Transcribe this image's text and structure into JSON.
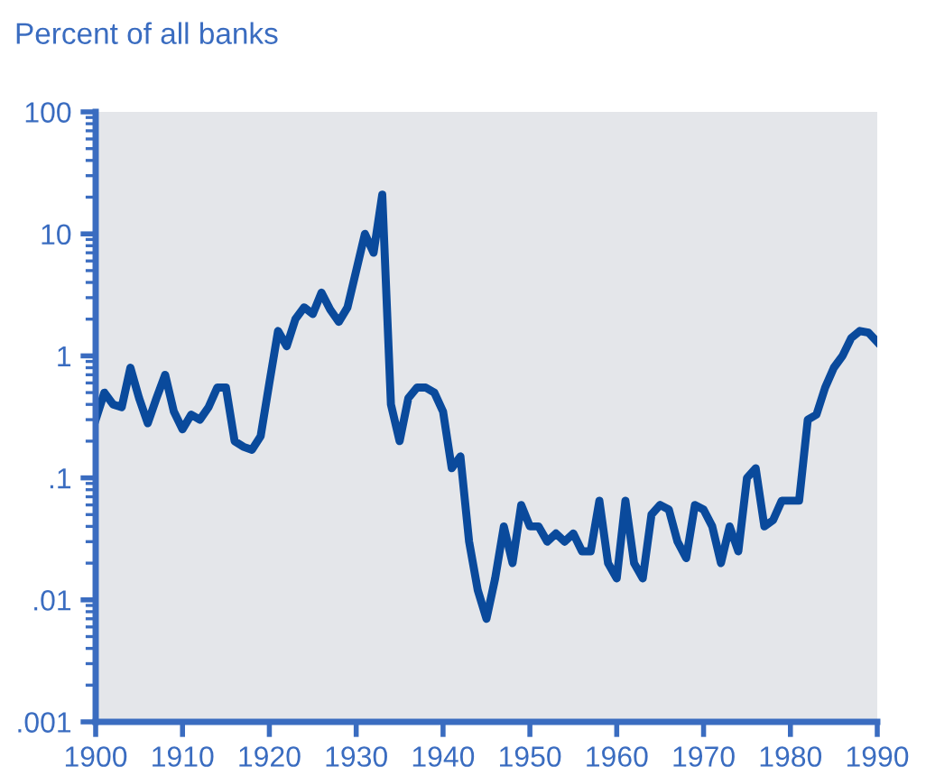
{
  "chart_data": {
    "type": "line",
    "ylabel": "Percent of all banks",
    "log": "y",
    "grid": false,
    "marker": "none",
    "line_style": "solid",
    "x": [
      1900,
      1901,
      1902,
      1903,
      1904,
      1905,
      1906,
      1907,
      1908,
      1909,
      1910,
      1911,
      1912,
      1913,
      1914,
      1915,
      1916,
      1917,
      1918,
      1919,
      1920,
      1921,
      1922,
      1923,
      1924,
      1925,
      1926,
      1927,
      1928,
      1929,
      1930,
      1931,
      1932,
      1933,
      1934,
      1935,
      1936,
      1937,
      1938,
      1939,
      1940,
      1941,
      1942,
      1943,
      1944,
      1945,
      1946,
      1947,
      1948,
      1949,
      1950,
      1951,
      1952,
      1953,
      1954,
      1955,
      1956,
      1957,
      1958,
      1959,
      1960,
      1961,
      1962,
      1963,
      1964,
      1965,
      1966,
      1967,
      1968,
      1969,
      1970,
      1971,
      1972,
      1973,
      1974,
      1975,
      1976,
      1977,
      1978,
      1979,
      1980,
      1981,
      1982,
      1983,
      1984,
      1985,
      1986,
      1987,
      1988,
      1989,
      1990
    ],
    "series": [
      {
        "color": "#0a4a9c",
        "values": [
          0.3,
          0.5,
          0.4,
          0.38,
          0.8,
          0.45,
          0.28,
          0.45,
          0.7,
          0.35,
          0.25,
          0.33,
          0.3,
          0.38,
          0.55,
          0.55,
          0.2,
          0.18,
          0.17,
          0.22,
          0.6,
          1.6,
          1.2,
          2.0,
          2.5,
          2.2,
          3.3,
          2.4,
          1.9,
          2.5,
          5,
          10,
          7,
          21,
          0.4,
          0.2,
          0.45,
          0.55,
          0.55,
          0.5,
          0.35,
          0.12,
          0.15,
          0.03,
          0.012,
          0.007,
          0.015,
          0.04,
          0.02,
          0.06,
          0.04,
          0.04,
          0.03,
          0.035,
          0.03,
          0.035,
          0.025,
          0.025,
          0.065,
          0.02,
          0.015,
          0.065,
          0.02,
          0.015,
          0.05,
          0.06,
          0.055,
          0.03,
          0.022,
          0.06,
          0.055,
          0.04,
          0.02,
          0.04,
          0.025,
          0.1,
          0.12,
          0.04,
          0.045,
          0.065,
          0.065,
          0.065,
          0.3,
          0.33,
          0.55,
          0.8,
          1.0,
          1.4,
          1.6,
          1.55,
          1.3
        ]
      }
    ],
    "xlim": [
      1900,
      1990
    ],
    "xticks": [
      1900,
      1910,
      1920,
      1930,
      1940,
      1950,
      1960,
      1970,
      1980,
      1990
    ],
    "ylim": [
      0.001,
      100
    ],
    "yticks": [
      {
        "value": 0.001,
        "label": ".001"
      },
      {
        "value": 0.01,
        "label": ".01"
      },
      {
        "value": 0.1,
        "label": ".1"
      },
      1,
      10,
      100
    ]
  }
}
